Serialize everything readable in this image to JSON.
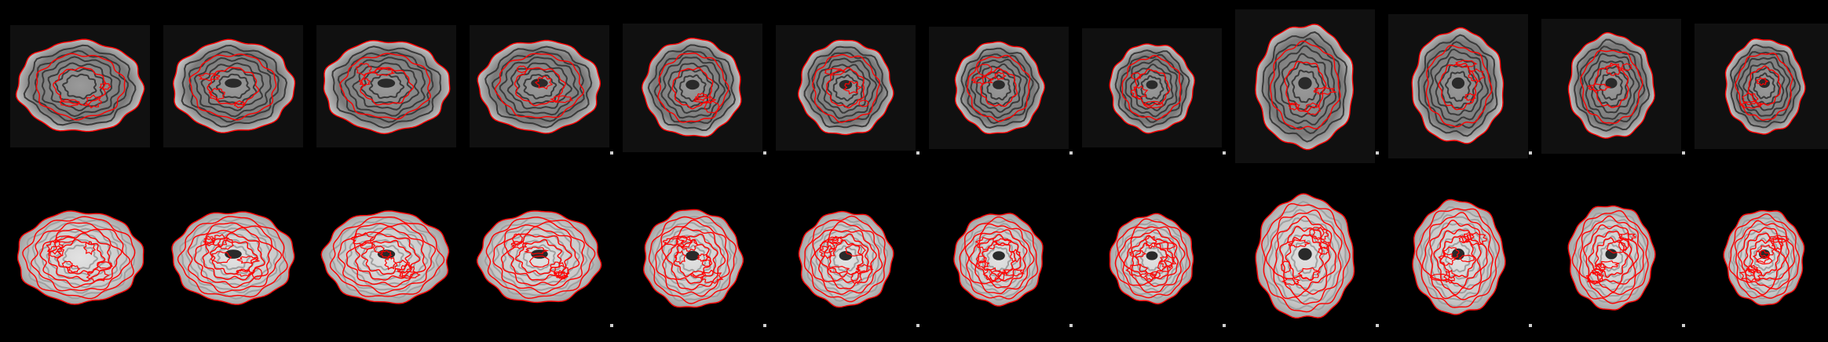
{
  "figure": {
    "rows": [
      {
        "id": "top",
        "overlay": "subject-edge-contours",
        "panels": [
          {
            "view": "sagittal"
          },
          {
            "view": "sagittal"
          },
          {
            "view": "sagittal"
          },
          {
            "view": "sagittal"
          },
          {
            "view": "coronal"
          },
          {
            "view": "coronal"
          },
          {
            "view": "coronal"
          },
          {
            "view": "coronal"
          },
          {
            "view": "axial"
          },
          {
            "view": "axial"
          },
          {
            "view": "axial"
          },
          {
            "view": "axial"
          }
        ]
      },
      {
        "id": "bottom",
        "overlay": "template-edge-contours",
        "panels": [
          {
            "view": "sagittal"
          },
          {
            "view": "sagittal"
          },
          {
            "view": "sagittal"
          },
          {
            "view": "sagittal"
          },
          {
            "view": "coronal"
          },
          {
            "view": "coronal"
          },
          {
            "view": "coronal"
          },
          {
            "view": "coronal"
          },
          {
            "view": "axial"
          },
          {
            "view": "axial"
          },
          {
            "view": "axial"
          },
          {
            "view": "axial"
          }
        ]
      }
    ],
    "colors": {
      "background": "#000000",
      "contour": "#ff0000",
      "tissue": "#bdbdbd"
    }
  }
}
